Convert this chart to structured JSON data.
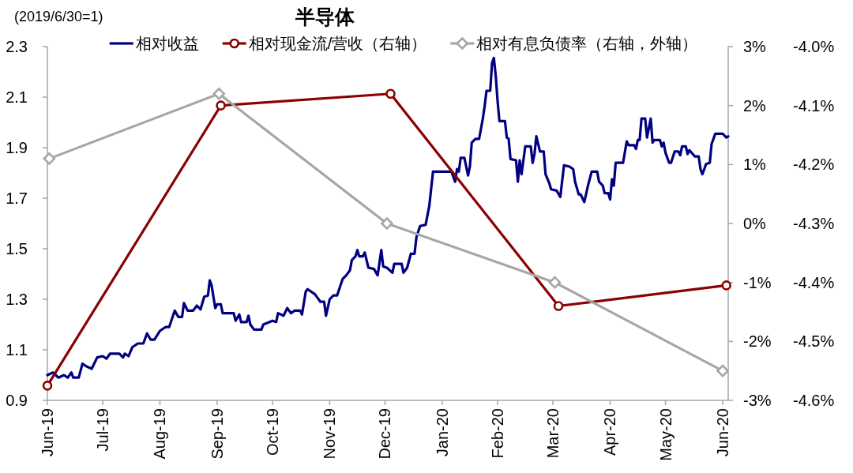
{
  "chart_data": {
    "type": "line",
    "title": "半导体",
    "ylabel": "(2019/6/30=1)",
    "legend": "top",
    "xlim": [
      "2019-06-30",
      "2020-07-03"
    ],
    "xticks": [
      {
        "value": "2019-06-30",
        "label": "Jun-19"
      },
      {
        "value": "2019-07-30",
        "label": "Jul-19"
      },
      {
        "value": "2019-08-30",
        "label": "Aug-19"
      },
      {
        "value": "2019-09-30",
        "label": "Sep-19"
      },
      {
        "value": "2019-10-30",
        "label": "Oct-19"
      },
      {
        "value": "2019-11-30",
        "label": "Nov-19"
      },
      {
        "value": "2019-12-30",
        "label": "Dec-19"
      },
      {
        "value": "2020-01-30",
        "label": "Jan-20"
      },
      {
        "value": "2020-02-29",
        "label": "Feb-20"
      },
      {
        "value": "2020-03-30",
        "label": "Mar-20"
      },
      {
        "value": "2020-04-30",
        "label": "Apr-20"
      },
      {
        "value": "2020-05-30",
        "label": "May-20"
      },
      {
        "value": "2020-06-30",
        "label": "Jun-20"
      }
    ],
    "ylim": [
      0.9,
      2.3
    ],
    "yticks": [
      0.9,
      1.1,
      1.3,
      1.5,
      1.7,
      1.9,
      2.1,
      2.3
    ],
    "y2lim": [
      -3,
      3
    ],
    "y2ticks": [
      {
        "value": -3,
        "label": "-3%"
      },
      {
        "value": -2,
        "label": "-2%"
      },
      {
        "value": -1,
        "label": "-1%"
      },
      {
        "value": 0,
        "label": "0%"
      },
      {
        "value": 1,
        "label": "1%"
      },
      {
        "value": 2,
        "label": "2%"
      },
      {
        "value": 3,
        "label": "3%"
      }
    ],
    "y3lim": [
      -4.6,
      -4.0
    ],
    "y3ticks": [
      {
        "value": -4.6,
        "label": "-4.6%"
      },
      {
        "value": -4.5,
        "label": "-4.5%"
      },
      {
        "value": -4.4,
        "label": "-4.4%"
      },
      {
        "value": -4.3,
        "label": "-4.3%"
      },
      {
        "value": -4.2,
        "label": "-4.2%"
      },
      {
        "value": -4.1,
        "label": "-4.1%"
      },
      {
        "value": -4.0,
        "label": "-4.0%"
      }
    ],
    "series": [
      {
        "name": "相对收益",
        "color": "#000080",
        "marker": "none",
        "x": [
          "2019-06-30",
          "2019-07-03",
          "2019-07-06",
          "2019-07-09",
          "2019-07-11",
          "2019-07-13",
          "2019-07-14",
          "2019-07-17",
          "2019-07-19",
          "2019-07-21",
          "2019-07-24",
          "2019-07-27",
          "2019-07-30",
          "2019-08-01",
          "2019-08-03",
          "2019-08-08",
          "2019-08-10",
          "2019-08-11",
          "2019-08-13",
          "2019-08-15",
          "2019-08-18",
          "2019-08-21",
          "2019-08-23",
          "2019-08-25",
          "2019-08-27",
          "2019-08-30",
          "2019-09-02",
          "2019-09-04",
          "2019-09-07",
          "2019-09-09",
          "2019-09-11",
          "2019-09-12",
          "2019-09-14",
          "2019-09-17",
          "2019-09-19",
          "2019-09-21",
          "2019-09-23",
          "2019-09-25",
          "2019-09-26",
          "2019-09-27",
          "2019-09-29",
          "2019-09-30",
          "2019-10-02",
          "2019-10-03",
          "2019-10-09",
          "2019-10-10",
          "2019-10-12",
          "2019-10-13",
          "2019-10-16",
          "2019-10-17",
          "2019-10-18",
          "2019-10-20",
          "2019-10-24",
          "2019-10-25",
          "2019-10-30",
          "2019-11-01",
          "2019-11-02",
          "2019-11-05",
          "2019-11-07",
          "2019-11-09",
          "2019-11-11",
          "2019-11-14",
          "2019-11-15",
          "2019-11-17",
          "2019-11-18",
          "2019-11-20",
          "2019-11-22",
          "2019-11-25",
          "2019-11-27",
          "2019-11-28",
          "2019-11-30",
          "2019-12-02",
          "2019-12-04",
          "2019-12-07",
          "2019-12-09",
          "2019-12-11",
          "2019-12-12",
          "2019-12-14",
          "2019-12-15",
          "2019-12-16",
          "2019-12-18",
          "2019-12-19",
          "2019-12-21",
          "2019-12-24",
          "2019-12-26",
          "2019-12-28",
          "2019-12-29",
          "2019-12-31",
          "2020-01-03",
          "2020-01-04",
          "2020-01-08",
          "2020-01-09",
          "2020-01-11",
          "2020-01-13",
          "2020-01-15",
          "2020-01-16",
          "2020-01-18",
          "2020-01-21",
          "2020-01-23",
          "2020-01-25",
          "2020-02-04",
          "2020-02-06",
          "2020-02-07",
          "2020-02-08",
          "2020-02-09",
          "2020-02-11",
          "2020-02-13",
          "2020-02-14",
          "2020-02-15",
          "2020-02-17",
          "2020-02-19",
          "2020-02-21",
          "2020-02-22",
          "2020-02-23",
          "2020-02-25",
          "2020-02-26",
          "2020-02-27",
          "2020-02-28",
          "2020-02-29",
          "2020-03-01",
          "2020-03-04",
          "2020-03-05",
          "2020-03-06",
          "2020-03-07",
          "2020-03-10",
          "2020-03-11",
          "2020-03-12",
          "2020-03-13",
          "2020-03-15",
          "2020-03-18",
          "2020-03-19",
          "2020-03-20",
          "2020-03-21",
          "2020-03-23",
          "2020-03-25",
          "2020-03-26",
          "2020-03-28",
          "2020-03-29",
          "2020-04-01",
          "2020-04-03",
          "2020-04-05",
          "2020-04-08",
          "2020-04-10",
          "2020-04-11",
          "2020-04-13",
          "2020-04-14",
          "2020-04-16",
          "2020-04-18",
          "2020-04-20",
          "2020-04-23",
          "2020-04-24",
          "2020-04-26",
          "2020-04-27",
          "2020-04-29",
          "2020-04-30",
          "2020-05-01",
          "2020-05-02",
          "2020-05-03",
          "2020-05-07",
          "2020-05-09",
          "2020-05-10",
          "2020-05-13",
          "2020-05-14",
          "2020-05-15",
          "2020-05-16",
          "2020-05-17",
          "2020-05-19",
          "2020-05-20",
          "2020-05-22",
          "2020-05-23",
          "2020-05-24",
          "2020-05-27",
          "2020-05-28",
          "2020-05-29",
          "2020-05-30",
          "2020-06-01",
          "2020-06-02",
          "2020-06-04",
          "2020-06-06",
          "2020-06-07",
          "2020-06-08",
          "2020-06-10",
          "2020-06-11",
          "2020-06-12",
          "2020-06-15",
          "2020-06-17",
          "2020-06-18",
          "2020-06-19",
          "2020-06-21",
          "2020-06-23",
          "2020-06-24",
          "2020-06-26",
          "2020-06-30",
          "2020-07-02",
          "2020-07-03"
        ],
        "values": [
          1.0,
          1.01,
          0.99,
          1.0,
          0.99,
          1.01,
          0.99,
          0.99,
          1.045,
          1.035,
          1.025,
          1.07,
          1.075,
          1.065,
          1.085,
          1.085,
          1.07,
          1.085,
          1.075,
          1.11,
          1.125,
          1.125,
          1.165,
          1.14,
          1.14,
          1.175,
          1.19,
          1.19,
          1.255,
          1.23,
          1.23,
          1.285,
          1.255,
          1.255,
          1.275,
          1.26,
          1.31,
          1.315,
          1.375,
          1.355,
          1.265,
          1.28,
          1.28,
          1.245,
          1.245,
          1.215,
          1.24,
          1.21,
          1.21,
          1.235,
          1.2,
          1.18,
          1.18,
          1.2,
          1.215,
          1.21,
          1.245,
          1.235,
          1.265,
          1.245,
          1.255,
          1.255,
          1.24,
          1.33,
          1.34,
          1.33,
          1.32,
          1.29,
          1.29,
          1.235,
          1.3,
          1.315,
          1.315,
          1.38,
          1.395,
          1.415,
          1.455,
          1.47,
          1.495,
          1.47,
          1.47,
          1.485,
          1.425,
          1.42,
          1.395,
          1.495,
          1.43,
          1.425,
          1.405,
          1.44,
          1.44,
          1.405,
          1.425,
          1.48,
          1.48,
          1.545,
          1.59,
          1.595,
          1.67,
          1.805,
          1.805,
          1.765,
          1.815,
          1.805,
          1.86,
          1.86,
          1.79,
          1.825,
          1.92,
          1.935,
          1.935,
          2.015,
          2.065,
          2.125,
          2.125,
          2.235,
          2.255,
          2.185,
          2.085,
          2.005,
          2.005,
          1.94,
          1.935,
          1.855,
          1.85,
          1.765,
          1.85,
          1.795,
          1.905,
          1.905,
          1.84,
          1.875,
          1.945,
          1.885,
          1.885,
          1.795,
          1.76,
          1.735,
          1.73,
          1.705,
          1.83,
          1.825,
          1.815,
          1.765,
          1.715,
          1.715,
          1.685,
          1.75,
          1.805,
          1.805,
          1.765,
          1.75,
          1.72,
          1.72,
          1.695,
          1.775,
          1.75,
          1.84,
          1.84,
          1.925,
          1.91,
          1.91,
          1.895,
          1.93,
          1.93,
          2.015,
          2.015,
          1.94,
          2.015,
          1.92,
          1.93,
          1.93,
          1.905,
          1.92,
          1.88,
          1.84,
          1.84,
          1.885,
          1.885,
          1.87,
          1.905,
          1.905,
          1.875,
          1.89,
          1.865,
          1.865,
          1.815,
          1.795,
          1.835,
          1.84,
          1.915,
          1.955,
          1.955,
          1.94,
          1.945
        ]
      },
      {
        "name": "相对现金流/营收（右轴）",
        "color": "#8b0000",
        "marker": "circle",
        "axis": "y2",
        "x": [
          "2019-06-30",
          "2019-10-02",
          "2020-01-02",
          "2020-04-02",
          "2020-07-02"
        ],
        "values": [
          -2.75,
          2.0,
          2.2,
          -1.4,
          -1.05
        ]
      },
      {
        "name": "相对有息负债率（右轴，外轴）",
        "color": "#a6a6a6",
        "marker": "diamond",
        "axis": "y3",
        "x": [
          "2019-07-01",
          "2019-10-01",
          "2019-12-31",
          "2020-03-31",
          "2020-06-30"
        ],
        "values": [
          -4.19,
          -4.08,
          -4.3,
          -4.4,
          -4.55
        ]
      }
    ]
  }
}
